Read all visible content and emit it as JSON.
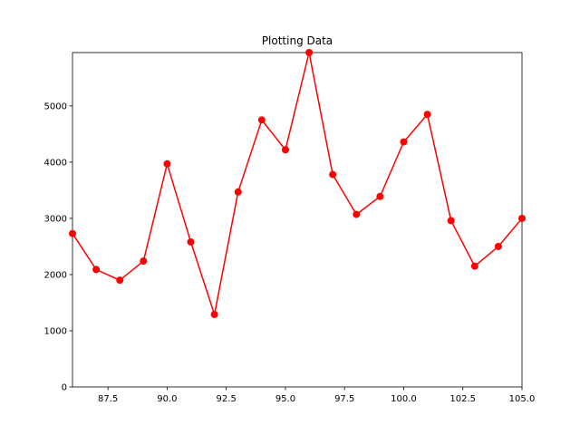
{
  "chart_data": {
    "type": "line",
    "title": "Plotting Data",
    "xlabel": "",
    "ylabel": "",
    "xlim": [
      86,
      105
    ],
    "ylim": [
      0,
      5950
    ],
    "xticks": [
      87.5,
      90.0,
      92.5,
      95.0,
      97.5,
      100.0,
      102.5,
      105.0
    ],
    "xtick_labels": [
      "87.5",
      "90.0",
      "92.5",
      "95.0",
      "97.5",
      "100.0",
      "102.5",
      "105.0"
    ],
    "yticks": [
      0,
      1000,
      2000,
      3000,
      4000,
      5000
    ],
    "ytick_labels": [
      "0",
      "1000",
      "2000",
      "3000",
      "4000",
      "5000"
    ],
    "grid": false,
    "series": [
      {
        "color": "#ff0000",
        "marker": "circle",
        "x": [
          86,
          87,
          88,
          89,
          90,
          91,
          92,
          93,
          94,
          95,
          96,
          97,
          98,
          99,
          100,
          101,
          102,
          103,
          104,
          105
        ],
        "y": [
          2730,
          2090,
          1900,
          2240,
          3970,
          2580,
          1290,
          3470,
          4750,
          4220,
          5950,
          3780,
          3070,
          3390,
          4360,
          4850,
          2960,
          2150,
          2500,
          3000
        ]
      }
    ]
  }
}
